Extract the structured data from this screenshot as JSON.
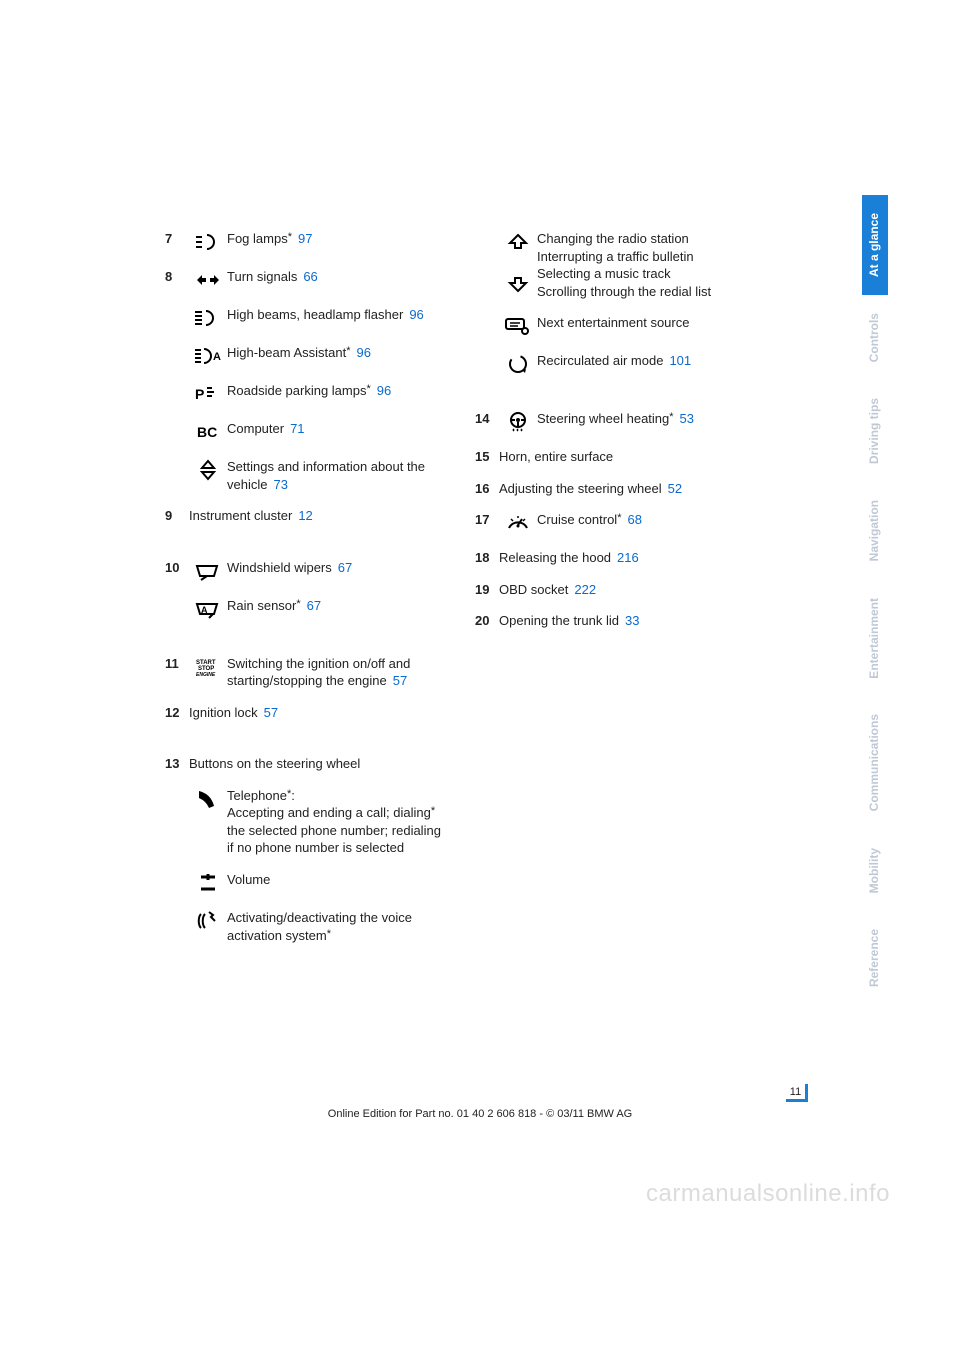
{
  "left": {
    "items": [
      {
        "num": "7",
        "icon": "fog",
        "label": "Fog lamps",
        "star": true,
        "ref": "97"
      },
      {
        "num": "8",
        "icon": "turn",
        "label": "Turn signals",
        "ref": "66"
      },
      {
        "num": "",
        "icon": "highbeam",
        "label": "High beams, headlamp flasher",
        "ref": "96"
      },
      {
        "num": "",
        "icon": "hba",
        "label": "High-beam Assistant",
        "star": true,
        "ref": "96"
      },
      {
        "num": "",
        "icon": "park",
        "label": "Roadside parking lamps",
        "star": true,
        "ref": "96"
      },
      {
        "num": "",
        "icon": "bc",
        "label": "Computer",
        "ref": "71"
      },
      {
        "num": "",
        "icon": "updown",
        "label": "Settings and information about the vehicle",
        "ref": "73"
      },
      {
        "num": "9",
        "icon": "",
        "label": "Instrument cluster",
        "ref": "12"
      },
      {
        "gap": true
      },
      {
        "num": "10",
        "icon": "wiper",
        "label": "Windshield wipers",
        "ref": "67"
      },
      {
        "num": "",
        "icon": "rain",
        "label": "Rain sensor",
        "star": true,
        "ref": "67"
      },
      {
        "gap": true
      },
      {
        "num": "11",
        "icon": "startstop",
        "label": "Switching the ignition on/off and starting/stopping the engine",
        "ref": "57"
      },
      {
        "num": "12",
        "icon": "",
        "label": "Ignition lock",
        "ref": "57"
      },
      {
        "gap": true
      },
      {
        "num": "13",
        "icon": "",
        "label": "Buttons on the steering wheel"
      },
      {
        "num": "",
        "icon": "phone",
        "label": "Telephone*:\nAccepting and ending a call; dialing* the selected phone number; redialing if no phone number is selected",
        "multiline": true
      },
      {
        "num": "",
        "icon": "volume",
        "label": "Volume"
      },
      {
        "num": "",
        "icon": "voice",
        "label": "Activating/deactivating the voice activation system",
        "star": true
      }
    ]
  },
  "right": {
    "items": [
      {
        "num": "",
        "icon": "up",
        "label": "Changing the radio station\nInterrupting a traffic bulletin\nSelecting a music track\nScrolling through the redial list",
        "multiline": true,
        "doubleicon": "down"
      },
      {
        "num": "",
        "icon": "source",
        "label": "Next entertainment source"
      },
      {
        "num": "",
        "icon": "recirc",
        "label": "Recirculated air mode",
        "ref": "101"
      },
      {
        "gap": true
      },
      {
        "num": "14",
        "icon": "swheat",
        "label": "Steering wheel heating",
        "star": true,
        "ref": "53"
      },
      {
        "num": "15",
        "icon": "",
        "label": "Horn, entire surface"
      },
      {
        "num": "16",
        "icon": "",
        "label": "Adjusting the steering wheel",
        "ref": "52"
      },
      {
        "num": "17",
        "icon": "cruise",
        "label": "Cruise control",
        "star": true,
        "ref": "68"
      },
      {
        "num": "18",
        "icon": "",
        "label": "Releasing the hood",
        "ref": "216"
      },
      {
        "num": "19",
        "icon": "",
        "label": "OBD socket",
        "ref": "222"
      },
      {
        "num": "20",
        "icon": "",
        "label": "Opening the trunk lid",
        "ref": "33"
      }
    ]
  },
  "tabs": [
    "At a glance",
    "Controls",
    "Driving tips",
    "Navigation",
    "Entertainment",
    "Communications",
    "Mobility",
    "Reference"
  ],
  "active_tab": 0,
  "page_number": "11",
  "footer": "Online Edition for Part no. 01 40 2 606 818 - © 03/11 BMW AG",
  "watermark": "carmanualsonline.info",
  "colors": {
    "link": "#0a6ad0",
    "tab_active_bg": "#1a7fd6",
    "tab_inactive": "#bfc9d6"
  }
}
